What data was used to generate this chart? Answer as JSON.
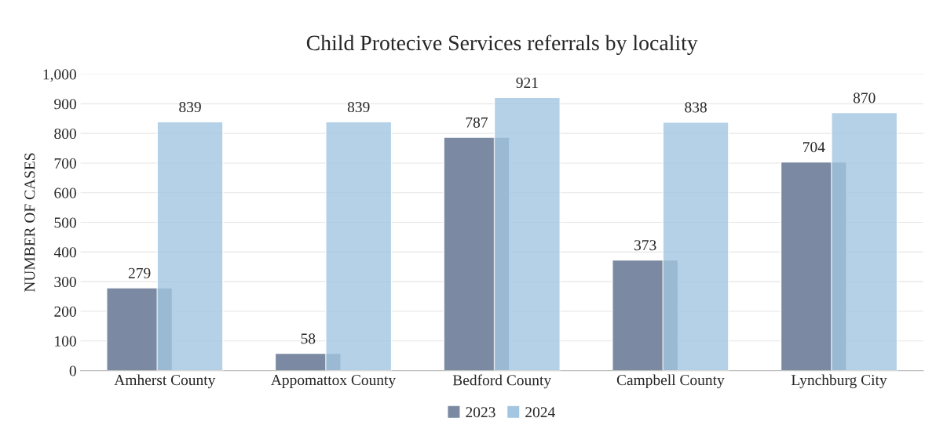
{
  "chart_data": {
    "type": "bar",
    "title": "Child Protecive Services referrals by locality",
    "ylabel": "NUMBER OF CASES",
    "categories": [
      "Amherst County",
      "Appomattox County",
      "Bedford County",
      "Campbell County",
      "Lynchburg City"
    ],
    "series": [
      {
        "name": "2023",
        "color": "#7b8aa2",
        "values": [
          279,
          58,
          787,
          373,
          704
        ]
      },
      {
        "name": "2024",
        "color": "#a3c6e2",
        "values": [
          839,
          839,
          921,
          838,
          870
        ]
      }
    ],
    "ylim": [
      0,
      1000
    ],
    "yticks": [
      0,
      100,
      200,
      300,
      400,
      500,
      600,
      700,
      800,
      900,
      {
        "value": 1000,
        "label": "1,000"
      }
    ],
    "grid": "y",
    "legend": "bottom",
    "data_labels": true
  }
}
